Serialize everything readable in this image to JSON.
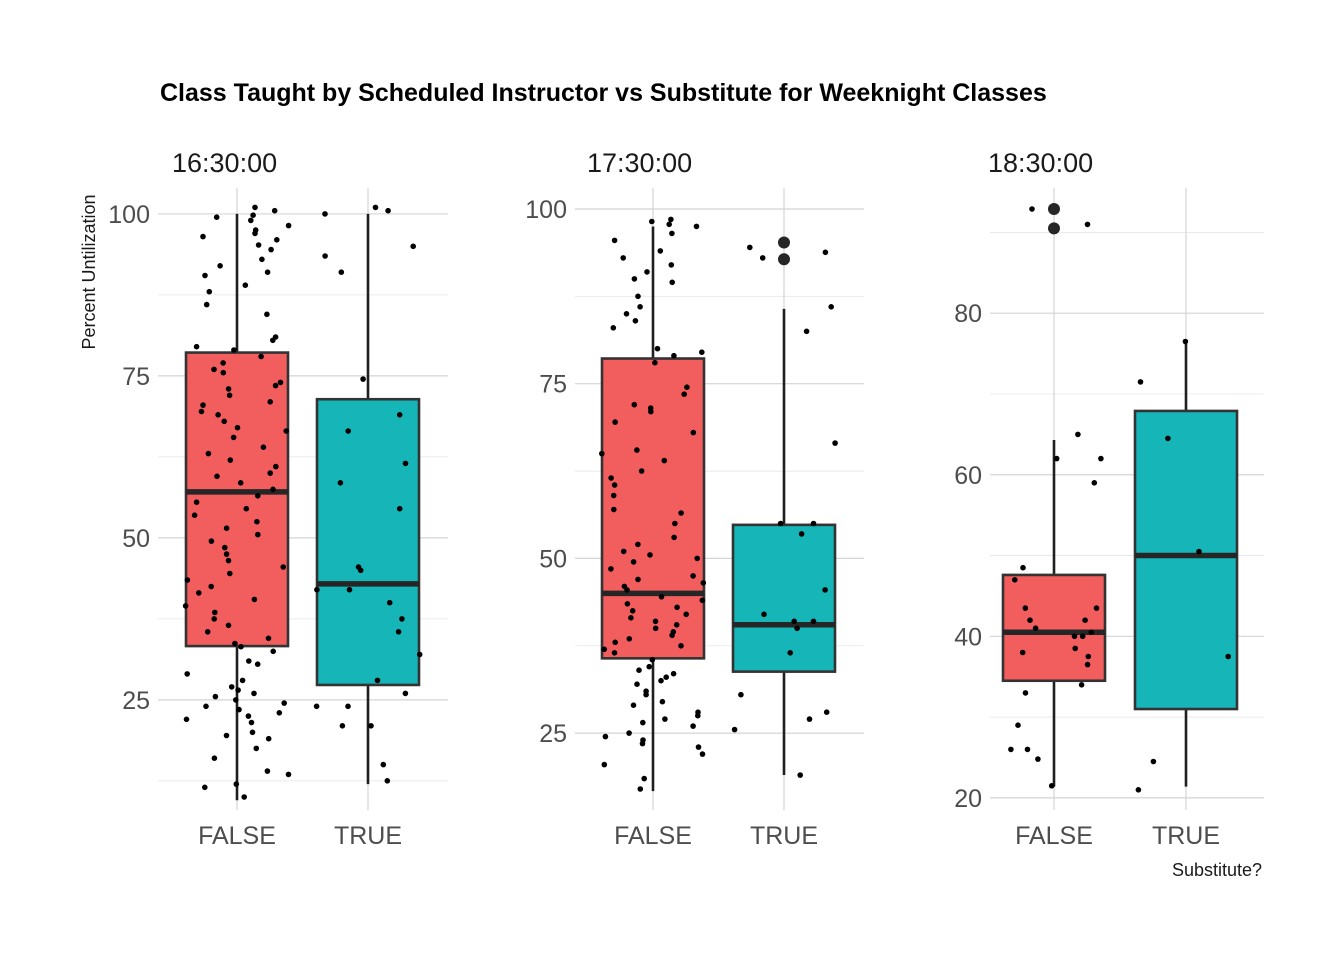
{
  "chart_data": {
    "type": "boxplot",
    "title": "Class Taught by Scheduled Instructor vs Substitute for Weeknight Classes",
    "ylabel": "Percent Untilization",
    "xlabel": "Substitute?",
    "grid": true,
    "legend": "none",
    "colors": {
      "FALSE": "#F25D5D",
      "TRUE": "#16B5B8"
    },
    "facets": [
      {
        "label": "16:30:00",
        "ylim": [
          8,
          104
        ],
        "yticks": [
          25,
          50,
          75,
          100
        ],
        "tick_labels": [
          "25",
          "50",
          "75",
          "100"
        ],
        "categories": [
          "FALSE",
          "TRUE"
        ],
        "boxes": [
          {
            "group": "FALSE",
            "q1": 33.3,
            "median": 57.1,
            "q3": 78.6,
            "whisker_low": 9.5,
            "whisker_high": 100,
            "outliers": []
          },
          {
            "group": "TRUE",
            "q1": 27.3,
            "median": 42.9,
            "q3": 71.4,
            "whisker_low": 12.0,
            "whisker_high": 100,
            "outliers": []
          }
        ],
        "points": {
          "FALSE": [
            99.8,
            99.5,
            99.0,
            98.2,
            97.5,
            97.0,
            96.5,
            96.0,
            95.2,
            94.5,
            93.0,
            92.0,
            91.0,
            90.5,
            89.0,
            88.0,
            86.0,
            84.5,
            81.0,
            80.5,
            79.5,
            79.0,
            78.0,
            77.0,
            76.0,
            75.5,
            74.0,
            73.5,
            73.0,
            72.0,
            71.0,
            70.5,
            69.5,
            69.0,
            68.0,
            67.0,
            66.5,
            65.5,
            64.0,
            63.0,
            62.0,
            61.0,
            60.0,
            59.5,
            58.5,
            57.5,
            56.5,
            55.5,
            54.5,
            53.5,
            52.5,
            51.5,
            50.5,
            49.5,
            48.5,
            47.5,
            46.5,
            45.5,
            44.5,
            43.5,
            42.5,
            41.5,
            40.5,
            39.5,
            38.5,
            37.5,
            36.5,
            35.5,
            34.5,
            33.7,
            33.2,
            32.5,
            31.0,
            30.5,
            29.0,
            28.0,
            27.0,
            26.5,
            26.0,
            25.5,
            25.0,
            24.5,
            24.0,
            23.5,
            23.0,
            22.5,
            22.0,
            21.5,
            20.0,
            19.5,
            19.0,
            17.5,
            16.0,
            14.0,
            13.5,
            12.0,
            11.5,
            10.0,
            101.0,
            100.5
          ],
          "TRUE": [
            101.0,
            100.5,
            100.0,
            95.0,
            93.5,
            91.0,
            74.5,
            69.0,
            66.5,
            61.5,
            58.5,
            54.5,
            45.5,
            45.0,
            42.0,
            42.0,
            40.0,
            37.5,
            35.5,
            32.0,
            28.0,
            26.0,
            24.0,
            24.0,
            21.0,
            21.0,
            15.0,
            12.5
          ]
        }
      },
      {
        "label": "17:30:00",
        "ylim": [
          14,
          103
        ],
        "yticks": [
          25,
          50,
          75,
          100
        ],
        "tick_labels": [
          "25",
          "50",
          "75",
          "100"
        ],
        "categories": [
          "FALSE",
          "TRUE"
        ],
        "boxes": [
          {
            "group": "FALSE",
            "q1": 35.7,
            "median": 45.0,
            "q3": 78.6,
            "whisker_low": 16.7,
            "whisker_high": 97.5,
            "outliers": []
          },
          {
            "group": "TRUE",
            "q1": 33.8,
            "median": 40.5,
            "q3": 54.8,
            "whisker_low": 19.0,
            "whisker_high": 85.7,
            "outliers": [
              95.2,
              92.8
            ]
          }
        ],
        "points": {
          "FALSE": [
            98.5,
            98.2,
            97.8,
            97.5,
            96.5,
            95.5,
            94.0,
            93.0,
            92.0,
            91.0,
            90.0,
            89.5,
            87.5,
            86.0,
            85.0,
            84.0,
            83.0,
            80.0,
            79.5,
            79.0,
            78.0,
            74.5,
            73.5,
            72.0,
            71.5,
            71.0,
            69.5,
            68.0,
            65.5,
            65.0,
            64.0,
            62.5,
            61.5,
            60.5,
            59.0,
            57.0,
            56.5,
            55.0,
            53.0,
            52.0,
            51.0,
            50.5,
            50.0,
            49.5,
            48.5,
            47.5,
            47.0,
            46.5,
            46.0,
            45.5,
            44.5,
            44.0,
            43.5,
            43.0,
            42.5,
            42.0,
            41.5,
            41.0,
            40.5,
            40.0,
            39.5,
            39.0,
            38.5,
            38.0,
            37.5,
            37.0,
            36.5,
            35.5,
            34.5,
            34.0,
            33.5,
            33.0,
            32.5,
            32.0,
            31.0,
            30.5,
            29.5,
            29.0,
            28.0,
            27.5,
            27.0,
            26.5,
            26.0,
            25.0,
            24.5,
            24.0,
            23.5,
            23.0,
            22.0,
            20.5,
            18.5,
            17.0
          ],
          "TRUE": [
            94.5,
            93.8,
            93.0,
            86.0,
            82.5,
            66.5,
            55.0,
            55.0,
            53.5,
            45.5,
            42.0,
            41.0,
            41.0,
            40.0,
            36.5,
            30.5,
            28.0,
            27.0,
            25.5,
            19.0
          ]
        }
      },
      {
        "label": "18:30:00",
        "ylim": [
          18.5,
          95.5
        ],
        "yticks": [
          20,
          40,
          60,
          80
        ],
        "tick_labels": [
          "20",
          "40",
          "60",
          "80"
        ],
        "categories": [
          "FALSE",
          "TRUE"
        ],
        "boxes": [
          {
            "group": "FALSE",
            "q1": 34.5,
            "median": 40.5,
            "q3": 47.6,
            "whisker_low": 21.4,
            "whisker_high": 64.3,
            "outliers": [
              92.9,
              90.5
            ]
          },
          {
            "group": "TRUE",
            "q1": 31.0,
            "median": 50.0,
            "q3": 67.9,
            "whisker_low": 21.4,
            "whisker_high": 76.2,
            "outliers": []
          }
        ],
        "points": {
          "FALSE": [
            92.9,
            91.0,
            65.0,
            62.0,
            62.0,
            59.0,
            48.5,
            47.0,
            43.5,
            43.5,
            42.0,
            42.0,
            41.0,
            40.5,
            40.0,
            40.0,
            38.5,
            38.0,
            37.5,
            36.5,
            34.0,
            33.0,
            29.0,
            26.0,
            26.0,
            24.8,
            21.5
          ],
          "TRUE": [
            76.5,
            71.5,
            64.5,
            50.5,
            37.5,
            24.5,
            21.0
          ]
        }
      }
    ]
  }
}
